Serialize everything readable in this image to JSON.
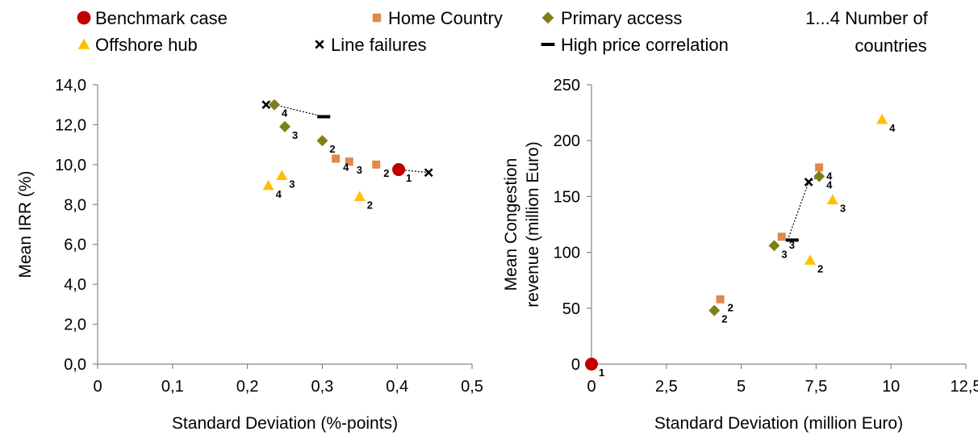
{
  "legend": {
    "items": [
      {
        "label": "Benchmark case",
        "marker": "circle",
        "color": "#C00000"
      },
      {
        "label": "Home Country",
        "marker": "square",
        "color": "#E0894A"
      },
      {
        "label": "Primary access",
        "marker": "diamond",
        "color": "#7F7F1A"
      },
      {
        "label": "Offshore hub",
        "marker": "triangle",
        "color": "#FFC000"
      },
      {
        "label": "Line failures",
        "marker": "x",
        "color": "#000000"
      },
      {
        "label": "High price correlation",
        "marker": "dash",
        "color": "#000000"
      }
    ],
    "note_line1": "1...4 Number of",
    "note_line2": "countries"
  },
  "chart_data": [
    {
      "type": "scatter",
      "title": "",
      "xlabel": "Standard Deviation (%-points)",
      "ylabel": "Mean IRR (%)",
      "xlim": [
        0,
        0.5
      ],
      "ylim": [
        0,
        14
      ],
      "x_ticks": [
        "0",
        "0,1",
        "0,2",
        "0,3",
        "0,4",
        "0,5"
      ],
      "x_tick_values": [
        0,
        0.1,
        0.2,
        0.3,
        0.4,
        0.5
      ],
      "y_ticks": [
        "0,0",
        "2,0",
        "4,0",
        "6,0",
        "8,0",
        "10,0",
        "12,0",
        "14,0"
      ],
      "y_tick_values": [
        0,
        2,
        4,
        6,
        8,
        10,
        12,
        14
      ],
      "grid": false,
      "series": [
        {
          "name": "Benchmark case",
          "marker": "circle",
          "points": [
            {
              "x": 0.402,
              "y": 9.75,
              "label": "1"
            }
          ]
        },
        {
          "name": "Home Country",
          "marker": "square",
          "points": [
            {
              "x": 0.372,
              "y": 10.0,
              "label": "2"
            },
            {
              "x": 0.336,
              "y": 10.15,
              "label": "3"
            },
            {
              "x": 0.318,
              "y": 10.3,
              "label": "4"
            }
          ]
        },
        {
          "name": "Primary access",
          "marker": "diamond",
          "points": [
            {
              "x": 0.3,
              "y": 11.2,
              "label": "2"
            },
            {
              "x": 0.25,
              "y": 11.9,
              "label": "3"
            },
            {
              "x": 0.236,
              "y": 13.0,
              "label": "4"
            }
          ]
        },
        {
          "name": "Offshore hub",
          "marker": "triangle",
          "points": [
            {
              "x": 0.35,
              "y": 8.4,
              "label": "2"
            },
            {
              "x": 0.246,
              "y": 9.45,
              "label": "3"
            },
            {
              "x": 0.228,
              "y": 8.95,
              "label": "4"
            }
          ]
        },
        {
          "name": "Line failures",
          "marker": "x",
          "points": [
            {
              "x": 0.442,
              "y": 9.6
            },
            {
              "x": 0.225,
              "y": 13.0
            }
          ]
        },
        {
          "name": "High price correlation",
          "marker": "dash",
          "points": [
            {
              "x": 0.302,
              "y": 12.4
            }
          ]
        }
      ],
      "connectors": [
        {
          "from": [
            0.402,
            9.75
          ],
          "to": [
            0.442,
            9.6
          ]
        },
        {
          "from": [
            0.236,
            13.0
          ],
          "to": [
            0.302,
            12.4
          ]
        }
      ]
    },
    {
      "type": "scatter",
      "title": "",
      "xlabel": "Standard Deviation (million Euro)",
      "ylabel": "Mean Congestion revenue (million Euro)",
      "ylabel_lines": [
        "Mean Congestion",
        "revenue (million Euro)"
      ],
      "xlim": [
        0,
        12.5
      ],
      "ylim": [
        0,
        250
      ],
      "x_ticks": [
        "0",
        "2,5",
        "5",
        "7,5",
        "10",
        "12,5"
      ],
      "x_tick_values": [
        0,
        2.5,
        5,
        7.5,
        10,
        12.5
      ],
      "y_ticks": [
        "0",
        "50",
        "100",
        "150",
        "200",
        "250"
      ],
      "y_tick_values": [
        0,
        50,
        100,
        150,
        200,
        250
      ],
      "grid": false,
      "series": [
        {
          "name": "Benchmark case",
          "marker": "circle",
          "points": [
            {
              "x": 0,
              "y": 0,
              "label": "1"
            }
          ]
        },
        {
          "name": "Home Country",
          "marker": "square",
          "points": [
            {
              "x": 4.3,
              "y": 58,
              "label": "2"
            },
            {
              "x": 6.35,
              "y": 114,
              "label": "3"
            },
            {
              "x": 7.6,
              "y": 176,
              "label": "4"
            }
          ]
        },
        {
          "name": "Primary access",
          "marker": "diamond",
          "points": [
            {
              "x": 4.1,
              "y": 48,
              "label": "2"
            },
            {
              "x": 6.1,
              "y": 106,
              "label": "3"
            },
            {
              "x": 7.6,
              "y": 168,
              "label": "4"
            }
          ]
        },
        {
          "name": "Offshore hub",
          "marker": "triangle",
          "points": [
            {
              "x": 7.3,
              "y": 93,
              "label": "2"
            },
            {
              "x": 8.05,
              "y": 147,
              "label": "3"
            },
            {
              "x": 9.7,
              "y": 219,
              "label": "4"
            }
          ]
        },
        {
          "name": "Line failures",
          "marker": "x",
          "points": [
            {
              "x": 7.25,
              "y": 163
            }
          ]
        },
        {
          "name": "High price correlation",
          "marker": "dash",
          "points": [
            {
              "x": 6.7,
              "y": 111
            }
          ]
        }
      ],
      "connectors": [
        {
          "from": [
            6.55,
            111
          ],
          "to": [
            7.25,
            163
          ]
        },
        {
          "from": [
            7.25,
            163
          ],
          "to": [
            7.6,
            168
          ]
        }
      ]
    }
  ]
}
